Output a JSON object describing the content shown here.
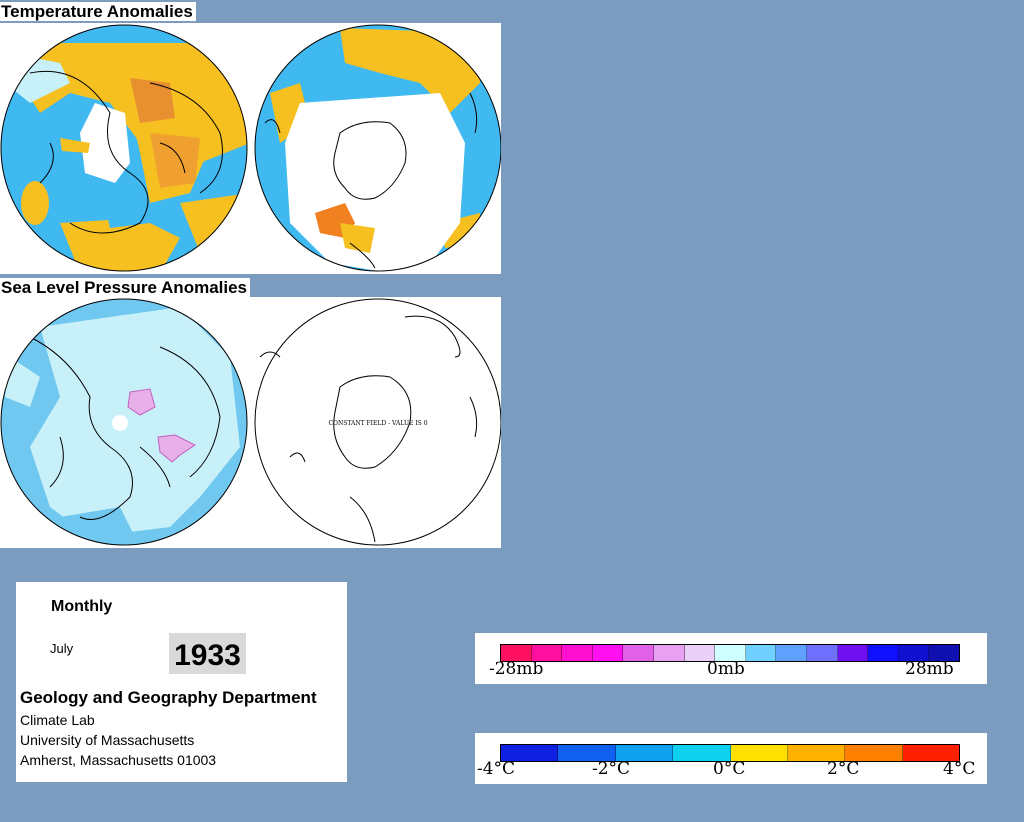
{
  "temperature_section": {
    "title": "Temperature Anomalies"
  },
  "pressure_section": {
    "title": "Sea Level Pressure Anomalies",
    "south_map_note": "CONSTANT FIELD - VALUE IS 0"
  },
  "info": {
    "period_type": "Monthly",
    "month": "July",
    "year": "1933",
    "department": "Geology and Geography Department",
    "lab": "Climate Lab",
    "university": "University of Massachusetts",
    "address": "Amherst, Massachusetts 01003"
  },
  "pressure_legend": {
    "labels": [
      "-28mb",
      "0mb",
      "28mb"
    ],
    "colors": [
      "#ff1060",
      "#ff10a0",
      "#ff10d0",
      "#ff10f0",
      "#e060e8",
      "#e8a0f0",
      "#e8d0f8",
      "#d0ffff",
      "#70d0ff",
      "#60a0ff",
      "#7070ff",
      "#7010f0",
      "#1010ff",
      "#1010d0",
      "#1010b0"
    ]
  },
  "temperature_legend": {
    "labels": [
      "-4°C",
      "-2°C",
      "0°C",
      "2°C",
      "4°C"
    ],
    "colors": [
      "#1020e0",
      "#1060f0",
      "#10a0f0",
      "#10d0f0",
      "#ffe000",
      "#ffb000",
      "#ff8000",
      "#ff2000"
    ]
  },
  "colors": {
    "background": "#7b9bbf",
    "warm_anomaly": "#f5c020",
    "strong_warm": "#f08020",
    "cool_anomaly": "#40b8f0",
    "light_cool": "#c8f0f8",
    "pressure_low": "#70c8f0",
    "pressure_high": "#e8b0e8"
  }
}
